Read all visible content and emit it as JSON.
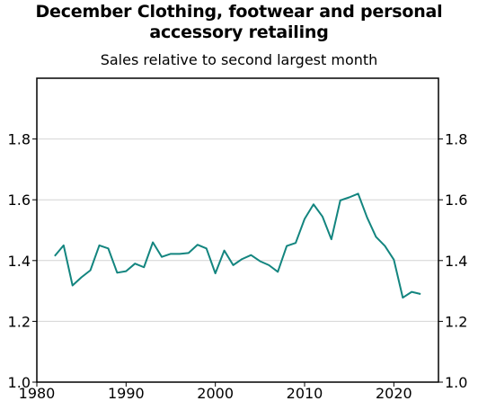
{
  "chart_data": {
    "type": "line",
    "title_lines": [
      "December Clothing, footwear and personal",
      "accessory retailing"
    ],
    "subtitle": "Sales relative to second largest month",
    "xlabel": "",
    "ylabel": "",
    "xlim": [
      1980,
      2025
    ],
    "ylim": [
      1.0,
      2.0
    ],
    "x_ticks": [
      1980,
      1990,
      2000,
      2010,
      2020
    ],
    "y_ticks": [
      1.0,
      1.2,
      1.4,
      1.6,
      1.8
    ],
    "y_tick_labels": [
      "1.0",
      "1.2",
      "1.4",
      "1.6",
      "1.8"
    ],
    "grid": "horizontal",
    "line_color": "#13857f",
    "series": [
      {
        "x": [
          1982,
          1983,
          1984,
          1985,
          1986,
          1987,
          1988,
          1989,
          1990,
          1991,
          1992,
          1993,
          1994,
          1995,
          1996,
          1997,
          1998,
          1999,
          2000,
          2001,
          2002,
          2003,
          2004,
          2005,
          2006,
          2007,
          2008,
          2009,
          2010,
          2011,
          2012,
          2013,
          2014,
          2015,
          2016,
          2017,
          2018,
          2019,
          2020,
          2021,
          2022,
          2023
        ],
        "values": [
          1.415,
          1.45,
          1.318,
          1.345,
          1.368,
          1.45,
          1.44,
          1.36,
          1.365,
          1.39,
          1.378,
          1.46,
          1.412,
          1.422,
          1.422,
          1.425,
          1.452,
          1.44,
          1.358,
          1.433,
          1.385,
          1.405,
          1.418,
          1.398,
          1.385,
          1.363,
          1.448,
          1.458,
          1.537,
          1.585,
          1.545,
          1.47,
          1.598,
          1.608,
          1.62,
          1.542,
          1.478,
          1.448,
          1.403,
          1.278,
          1.297,
          1.29
        ]
      }
    ]
  }
}
